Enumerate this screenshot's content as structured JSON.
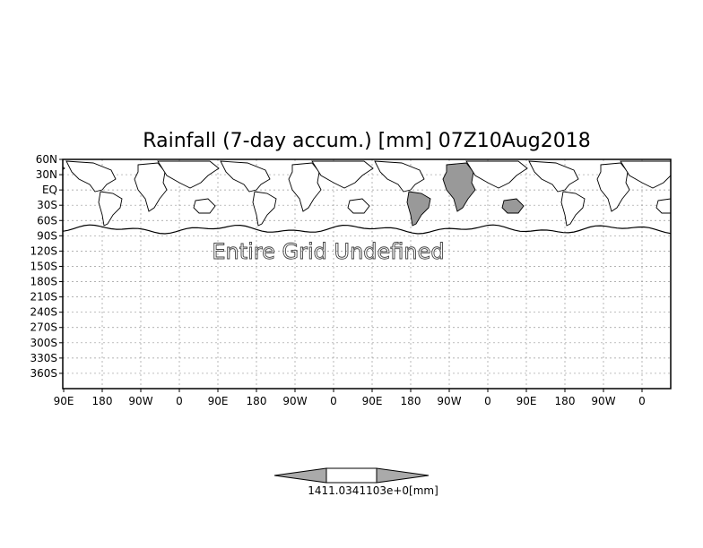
{
  "title": "Rainfall (7-day accum.) [mm] 07Z10Aug2018",
  "undefined_message": "Entire Grid Undefined",
  "colorbar_label": "1411.0341103e+0[mm]",
  "colors": {
    "land_gray": "#999999",
    "frame": "#000000",
    "grid": "#999999",
    "background": "#ffffff",
    "cbar_end": "#aaaaaa"
  },
  "chart_data": {
    "type": "map",
    "title": "Rainfall (7-day accum.) [mm] 07Z10Aug2018",
    "x_ticks": [
      "90E",
      "180",
      "90W",
      "0",
      "90E",
      "180",
      "90W",
      "0",
      "90E",
      "180",
      "90W",
      "0",
      "90E",
      "180",
      "90W",
      "0"
    ],
    "y_ticks": [
      "60N",
      "30N",
      "EQ",
      "30S",
      "60S",
      "90S",
      "120S",
      "150S",
      "180S",
      "210S",
      "240S",
      "270S",
      "300S",
      "330S",
      "360S"
    ],
    "grid": true,
    "annotation": "Entire Grid Undefined",
    "colorbar_label": "1411.0341103e+0[mm]"
  }
}
